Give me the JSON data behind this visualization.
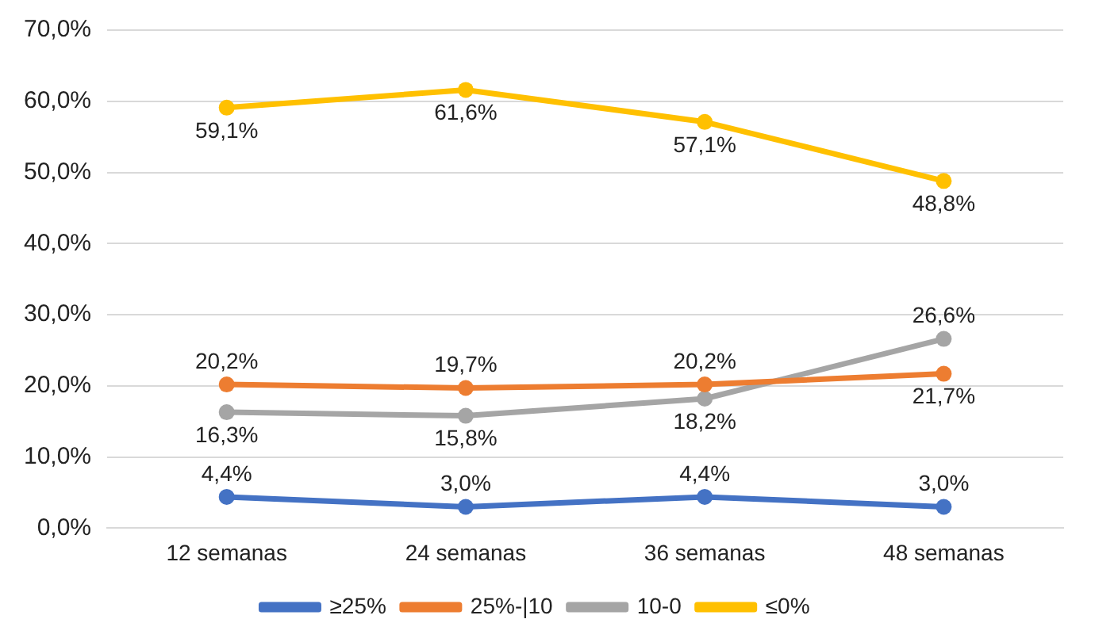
{
  "chart_data": {
    "type": "line",
    "categories": [
      "12 semanas",
      "24 semanas",
      "36 semanas",
      "48 semanas"
    ],
    "series": [
      {
        "name": "≥25%",
        "color": "#4472c4",
        "values": [
          4.4,
          3.0,
          4.4,
          3.0
        ],
        "value_labels": [
          "4,4%",
          "3,0%",
          "4,4%",
          "3,0%"
        ]
      },
      {
        "name": "25%-|10",
        "color": "#ed7d31",
        "values": [
          20.2,
          19.7,
          20.2,
          21.7
        ],
        "value_labels": [
          "20,2%",
          "19,7%",
          "20,2%",
          "21,7%"
        ]
      },
      {
        "name": "10-0",
        "color": "#a5a5a5",
        "values": [
          16.3,
          15.8,
          18.2,
          26.6
        ],
        "value_labels": [
          "16,3%",
          "15,8%",
          "18,2%",
          "26,6%"
        ]
      },
      {
        "name": "≤0%",
        "color": "#ffc000",
        "values": [
          59.1,
          61.6,
          57.1,
          48.8
        ],
        "value_labels": [
          "59,1%",
          "61,6%",
          "57,1%",
          "48,8%"
        ]
      }
    ],
    "ylim": [
      0,
      70
    ],
    "yticks": [
      {
        "value": 0,
        "label": "0,0%"
      },
      {
        "value": 10,
        "label": "10,0%"
      },
      {
        "value": 20,
        "label": "20,0%"
      },
      {
        "value": 30,
        "label": "30,0%"
      },
      {
        "value": 40,
        "label": "40,0%"
      },
      {
        "value": 50,
        "label": "50,0%"
      },
      {
        "value": 60,
        "label": "60,0%"
      },
      {
        "value": 70,
        "label": "70,0%"
      }
    ],
    "grid": "y",
    "legend": "bottom",
    "marker": "circle",
    "line_style": "solid"
  }
}
